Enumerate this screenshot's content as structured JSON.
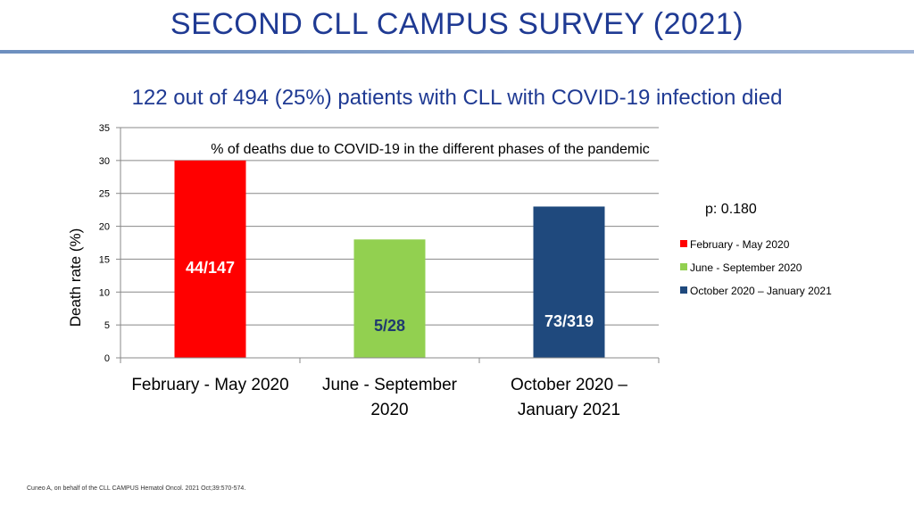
{
  "slide": {
    "title": "SECOND CLL CAMPUS SURVEY (2021)",
    "subtitle": "122 out of 494 (25%) patients with CLL with COVID-19 infection died",
    "footnote": "Cuneo A, on behalf of the CLL CAMPUS Hematol Oncol. 2021 Oct;39:570-574."
  },
  "chart_data": {
    "type": "bar",
    "title": "% of deaths due to COVID-19 in the different phases of the pandemic",
    "ylabel": "Death rate (%)",
    "xlabel": "",
    "ylim": [
      0,
      35
    ],
    "yticks": [
      "0",
      "5",
      "10",
      "15",
      "20",
      "25",
      "30",
      "35"
    ],
    "annotation": "p: 0.180",
    "legend_position": "right",
    "categories": [
      [
        "February -  May 2020"
      ],
      [
        "June - September",
        "2020"
      ],
      [
        "October 2020 –",
        "January 2021"
      ]
    ],
    "series": [
      {
        "name": "February -  May 2020",
        "value": 30,
        "label": "44/147",
        "color": "#ff0000"
      },
      {
        "name": "June - September 2020",
        "value": 18,
        "label": "5/28",
        "color": "#92d050"
      },
      {
        "name": "October 2020 – January 2021",
        "value": 23,
        "label": "73/319",
        "color": "#1f497d"
      }
    ]
  }
}
